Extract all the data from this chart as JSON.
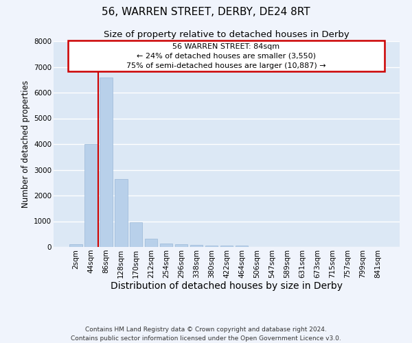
{
  "title": "56, WARREN STREET, DERBY, DE24 8RT",
  "subtitle": "Size of property relative to detached houses in Derby",
  "xlabel": "Distribution of detached houses by size in Derby",
  "ylabel": "Number of detached properties",
  "bar_labels": [
    "2sqm",
    "44sqm",
    "86sqm",
    "128sqm",
    "170sqm",
    "212sqm",
    "254sqm",
    "296sqm",
    "338sqm",
    "380sqm",
    "422sqm",
    "464sqm",
    "506sqm",
    "547sqm",
    "589sqm",
    "631sqm",
    "673sqm",
    "715sqm",
    "757sqm",
    "799sqm",
    "841sqm"
  ],
  "bar_values": [
    100,
    4000,
    6600,
    2650,
    950,
    320,
    130,
    120,
    70,
    60,
    55,
    50,
    0,
    0,
    0,
    0,
    0,
    0,
    0,
    0,
    0
  ],
  "bar_color": "#b8d0ea",
  "bar_edge_color": "#9ab8d8",
  "background_color": "#dce8f5",
  "grid_color": "#ffffff",
  "vline_color": "#cc0000",
  "annotation_box_color": "#cc0000",
  "annotation_box_fill": "#ffffff",
  "ann_line1": "56 WARREN STREET: 84sqm",
  "ann_line2": "← 24% of detached houses are smaller (3,550)",
  "ann_line3": "75% of semi-detached houses are larger (10,887) →",
  "ylim": [
    0,
    8000
  ],
  "yticks": [
    0,
    1000,
    2000,
    3000,
    4000,
    5000,
    6000,
    7000,
    8000
  ],
  "footer_line1": "Contains HM Land Registry data © Crown copyright and database right 2024.",
  "footer_line2": "Contains public sector information licensed under the Open Government Licence v3.0.",
  "title_fontsize": 11,
  "subtitle_fontsize": 9.5,
  "xlabel_fontsize": 10,
  "ylabel_fontsize": 8.5,
  "tick_fontsize": 7.5,
  "annotation_fontsize": 8,
  "footer_fontsize": 6.5
}
